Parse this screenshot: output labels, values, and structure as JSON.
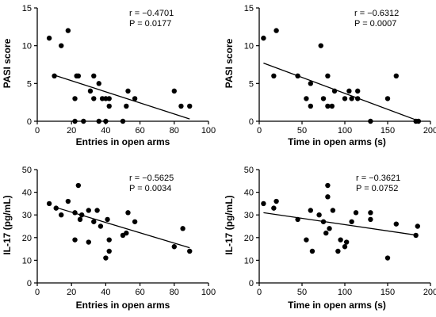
{
  "chart_data": [
    {
      "type": "scatter",
      "xlabel": "Entries in open arms",
      "ylabel": "PASI score",
      "xlim": [
        0,
        100
      ],
      "ylim": [
        0,
        15
      ],
      "xticks": [
        "0",
        "20",
        "40",
        "60",
        "80",
        "100"
      ],
      "yticks": [
        "0",
        "5",
        "10",
        "15"
      ],
      "stats": {
        "r": "r = −0.4701",
        "p": "P = 0.0177"
      },
      "fit_line": {
        "x": [
          10,
          89
        ],
        "y": [
          6.1,
          0.3
        ]
      },
      "points": [
        {
          "x": 7,
          "y": 11
        },
        {
          "x": 10,
          "y": 6
        },
        {
          "x": 14,
          "y": 10
        },
        {
          "x": 18,
          "y": 12
        },
        {
          "x": 22,
          "y": 3
        },
        {
          "x": 23,
          "y": 6
        },
        {
          "x": 24,
          "y": 6
        },
        {
          "x": 22,
          "y": 0
        },
        {
          "x": 27,
          "y": 0
        },
        {
          "x": 31,
          "y": 4
        },
        {
          "x": 33,
          "y": 6
        },
        {
          "x": 33,
          "y": 3
        },
        {
          "x": 36,
          "y": 5
        },
        {
          "x": 36,
          "y": 0
        },
        {
          "x": 38,
          "y": 3
        },
        {
          "x": 40,
          "y": 3
        },
        {
          "x": 40,
          "y": 0
        },
        {
          "x": 42,
          "y": 3
        },
        {
          "x": 42,
          "y": 2
        },
        {
          "x": 50,
          "y": 0
        },
        {
          "x": 52,
          "y": 2
        },
        {
          "x": 53,
          "y": 4
        },
        {
          "x": 57,
          "y": 3
        },
        {
          "x": 80,
          "y": 4
        },
        {
          "x": 84,
          "y": 2
        },
        {
          "x": 89,
          "y": 2
        }
      ]
    },
    {
      "type": "scatter",
      "xlabel": "Time in open arms (s)",
      "ylabel": "PASI score",
      "xlim": [
        0,
        200
      ],
      "ylim": [
        0,
        15
      ],
      "xticks": [
        "0",
        "50",
        "100",
        "150",
        "200"
      ],
      "yticks": [
        "0",
        "5",
        "10",
        "15"
      ],
      "stats": {
        "r": "r = −0.6312",
        "p": "P = 0.0007"
      },
      "fit_line": {
        "x": [
          5,
          185
        ],
        "y": [
          7.7,
          0.1
        ]
      },
      "points": [
        {
          "x": 5,
          "y": 11
        },
        {
          "x": 17,
          "y": 6
        },
        {
          "x": 20,
          "y": 12
        },
        {
          "x": 45,
          "y": 6
        },
        {
          "x": 55,
          "y": 3
        },
        {
          "x": 60,
          "y": 2
        },
        {
          "x": 60,
          "y": 5
        },
        {
          "x": 72,
          "y": 10
        },
        {
          "x": 75,
          "y": 3
        },
        {
          "x": 80,
          "y": 2
        },
        {
          "x": 80,
          "y": 6
        },
        {
          "x": 85,
          "y": 2
        },
        {
          "x": 88,
          "y": 4
        },
        {
          "x": 100,
          "y": 3
        },
        {
          "x": 105,
          "y": 4
        },
        {
          "x": 108,
          "y": 3
        },
        {
          "x": 115,
          "y": 4
        },
        {
          "x": 115,
          "y": 3
        },
        {
          "x": 130,
          "y": 0
        },
        {
          "x": 150,
          "y": 3
        },
        {
          "x": 160,
          "y": 6
        },
        {
          "x": 183,
          "y": 0
        },
        {
          "x": 186,
          "y": 0
        }
      ]
    },
    {
      "type": "scatter",
      "xlabel": "Entries in open arms",
      "ylabel": "IL-17 (pg/mL)",
      "xlim": [
        0,
        100
      ],
      "ylim": [
        0,
        50
      ],
      "xticks": [
        "0",
        "20",
        "40",
        "60",
        "80",
        "100"
      ],
      "yticks": [
        "0",
        "10",
        "20",
        "30",
        "40",
        "50"
      ],
      "stats": {
        "r": "r = −0.5625",
        "p": "P = 0.0034"
      },
      "fit_line": {
        "x": [
          10,
          89
        ],
        "y": [
          33.5,
          15.5
        ]
      },
      "points": [
        {
          "x": 7,
          "y": 35
        },
        {
          "x": 11,
          "y": 33
        },
        {
          "x": 14,
          "y": 30
        },
        {
          "x": 18,
          "y": 36
        },
        {
          "x": 22,
          "y": 31
        },
        {
          "x": 22,
          "y": 19
        },
        {
          "x": 24,
          "y": 43
        },
        {
          "x": 25,
          "y": 28
        },
        {
          "x": 26,
          "y": 30
        },
        {
          "x": 30,
          "y": 32
        },
        {
          "x": 30,
          "y": 18
        },
        {
          "x": 33,
          "y": 27
        },
        {
          "x": 35,
          "y": 32
        },
        {
          "x": 37,
          "y": 25
        },
        {
          "x": 40,
          "y": 11
        },
        {
          "x": 41,
          "y": 28
        },
        {
          "x": 42,
          "y": 19
        },
        {
          "x": 42,
          "y": 14
        },
        {
          "x": 50,
          "y": 21
        },
        {
          "x": 52,
          "y": 22
        },
        {
          "x": 53,
          "y": 31
        },
        {
          "x": 57,
          "y": 27
        },
        {
          "x": 80,
          "y": 16
        },
        {
          "x": 85,
          "y": 24
        },
        {
          "x": 89,
          "y": 14
        }
      ]
    },
    {
      "type": "scatter",
      "xlabel": "Time in open arms (s)",
      "ylabel": "IL-17 (pg/mL)",
      "xlim": [
        0,
        200
      ],
      "ylim": [
        0,
        50
      ],
      "xticks": [
        "0",
        "50",
        "100",
        "150",
        "200"
      ],
      "yticks": [
        "0",
        "10",
        "20",
        "30",
        "40",
        "50"
      ],
      "stats": {
        "r": "r = −0.3621",
        "p": "P = 0.0752"
      },
      "fit_line": {
        "x": [
          5,
          185
        ],
        "y": [
          31,
          21
        ]
      },
      "points": [
        {
          "x": 5,
          "y": 35
        },
        {
          "x": 17,
          "y": 33
        },
        {
          "x": 20,
          "y": 36
        },
        {
          "x": 45,
          "y": 28
        },
        {
          "x": 55,
          "y": 19
        },
        {
          "x": 60,
          "y": 32
        },
        {
          "x": 62,
          "y": 14
        },
        {
          "x": 70,
          "y": 30
        },
        {
          "x": 75,
          "y": 27
        },
        {
          "x": 78,
          "y": 22
        },
        {
          "x": 80,
          "y": 43
        },
        {
          "x": 80,
          "y": 38
        },
        {
          "x": 82,
          "y": 24
        },
        {
          "x": 86,
          "y": 32
        },
        {
          "x": 92,
          "y": 14
        },
        {
          "x": 95,
          "y": 19
        },
        {
          "x": 100,
          "y": 16
        },
        {
          "x": 102,
          "y": 18
        },
        {
          "x": 108,
          "y": 27
        },
        {
          "x": 113,
          "y": 31
        },
        {
          "x": 130,
          "y": 31
        },
        {
          "x": 130,
          "y": 28
        },
        {
          "x": 150,
          "y": 11
        },
        {
          "x": 160,
          "y": 26
        },
        {
          "x": 183,
          "y": 21
        },
        {
          "x": 185,
          "y": 25
        }
      ]
    }
  ]
}
